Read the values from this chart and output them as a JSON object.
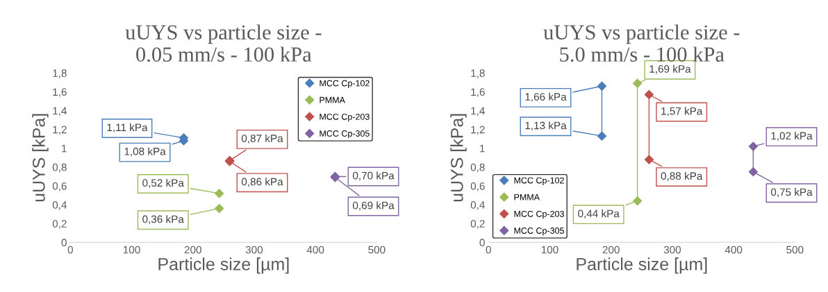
{
  "chart_data": [
    {
      "type": "scatter",
      "title": "uUYS vs particle size -\n0.05 mm/s - 100 kPa",
      "xlabel": "Particle size [µm]",
      "ylabel": "uUYS [kPa]",
      "marker": "diamond",
      "legend": "top right",
      "grid": false,
      "xlim": [
        0,
        500
      ],
      "xticks": [
        0,
        100,
        200,
        300,
        400,
        500
      ],
      "ylim": [
        0,
        1.8
      ],
      "yticks": [
        0,
        {
          "value": 0.2,
          "label": "0,2"
        },
        {
          "value": 0.4,
          "label": "0,4"
        },
        {
          "value": 0.6,
          "label": "0,6"
        },
        {
          "value": 0.8,
          "label": "0,8"
        },
        1,
        {
          "value": 1.2,
          "label": "1,2"
        },
        {
          "value": 1.4,
          "label": "1,4"
        },
        {
          "value": 1.6,
          "label": "1,6"
        },
        {
          "value": 1.8,
          "label": "1,8"
        }
      ],
      "series": [
        {
          "name": "MCC Cp-102",
          "color": "#4a7ebb",
          "x": [
            185,
            185
          ],
          "values": [
            1.11,
            1.08
          ],
          "value_labels": [
            "1,11 kPa",
            "1,08 kPa"
          ]
        },
        {
          "name": "PMMA",
          "color": "#9bbb59",
          "x": [
            243,
            243
          ],
          "values": [
            0.52,
            0.36
          ],
          "value_labels": [
            "0,52 kPa",
            "0,36 kPa"
          ]
        },
        {
          "name": "MCC Cp-203",
          "color": "#c0504d",
          "x": [
            260,
            260
          ],
          "values": [
            0.87,
            0.86
          ],
          "value_labels": [
            "0,87 kPa",
            "0,86 kPa"
          ]
        },
        {
          "name": "MCC Cp-305",
          "color": "#8064a2",
          "x": [
            432,
            432
          ],
          "values": [
            0.7,
            0.69
          ],
          "value_labels": [
            "0,70 kPa",
            "0,69 kPa"
          ]
        }
      ]
    },
    {
      "type": "line",
      "title": "uUYS vs particle size -\n5.0 mm/s - 100 kPa",
      "xlabel": "Particle size [µm]",
      "ylabel": "uUYS [kPa]",
      "marker": "diamond",
      "legend": "bottom left",
      "grid": false,
      "xlim": [
        0,
        500
      ],
      "xticks": [
        0,
        100,
        200,
        300,
        400,
        500
      ],
      "ylim": [
        0,
        1.8
      ],
      "yticks": [
        0,
        {
          "value": 0.2,
          "label": "0,2"
        },
        {
          "value": 0.4,
          "label": "0,4"
        },
        {
          "value": 0.6,
          "label": "0,6"
        },
        {
          "value": 0.8,
          "label": "0,8"
        },
        1,
        {
          "value": 1.2,
          "label": "1,2"
        },
        {
          "value": 1.4,
          "label": "1,4"
        },
        {
          "value": 1.6,
          "label": "1,6"
        },
        {
          "value": 1.8,
          "label": "1,8"
        }
      ],
      "series": [
        {
          "name": "MCC Cp-102",
          "color": "#4a7ebb",
          "x": [
            185,
            185
          ],
          "values": [
            1.66,
            1.13
          ],
          "value_labels": [
            "1,66 kPa",
            "1,13 kPa"
          ]
        },
        {
          "name": "PMMA",
          "color": "#9bbb59",
          "x": [
            243,
            243
          ],
          "values": [
            1.69,
            0.44
          ],
          "value_labels": [
            "1,69 kPa",
            "0,44 kPa"
          ]
        },
        {
          "name": "MCC Cp-203",
          "color": "#c0504d",
          "x": [
            262,
            262
          ],
          "values": [
            1.57,
            0.88
          ],
          "value_labels": [
            "1,57 kPa",
            "0,88 kPa"
          ]
        },
        {
          "name": "MCC Cp-305",
          "color": "#8064a2",
          "x": [
            432,
            432
          ],
          "values": [
            1.02,
            0.75
          ],
          "value_labels": [
            "1,02 kPa",
            "0,75 kPa"
          ]
        }
      ]
    }
  ]
}
